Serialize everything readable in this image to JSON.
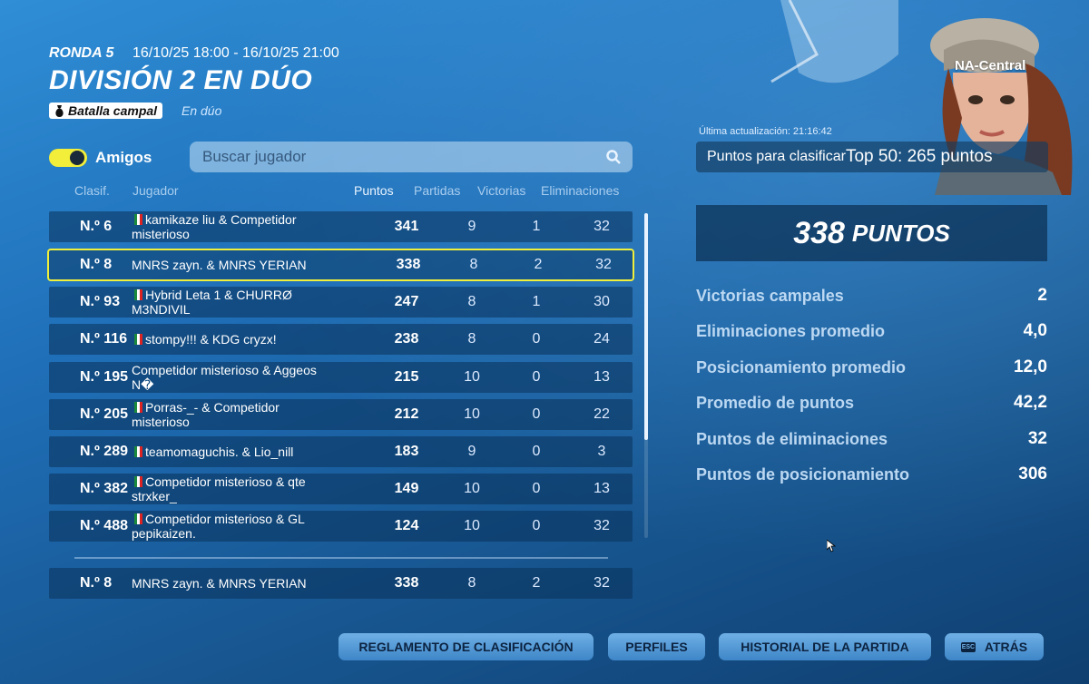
{
  "header": {
    "round": "RONDA 5",
    "dates": "16/10/25 18:00 - 16/10/25 21:00",
    "title": "DIVISIÓN 2 EN DÚO",
    "mode": "Batalla campal",
    "mode_sub": "En dúo"
  },
  "controls": {
    "friends_label": "Amigos",
    "friends_toggle_on": true,
    "search_placeholder": "Buscar jugador"
  },
  "table": {
    "columns": [
      "Clasif.",
      "Jugador",
      "Puntos",
      "Partidas",
      "Victorias",
      "Eliminaciones"
    ],
    "rows": [
      {
        "rank": "N.º 6",
        "line1": "kamikaze liu & Competidor",
        "line2": "misterioso",
        "points": "341",
        "matches": "9",
        "wins": "1",
        "elims": "32"
      },
      {
        "rank": "N.º 8",
        "line1": "MNRS zayn. & MNRS YERIAN",
        "line2": "",
        "points": "338",
        "matches": "8",
        "wins": "2",
        "elims": "32"
      },
      {
        "rank": "N.º 93",
        "line1": "Hybrid Leta 1 & CHURRØ",
        "line2": "M3NDIVIL",
        "points": "247",
        "matches": "8",
        "wins": "1",
        "elims": "30"
      },
      {
        "rank": "N.º 116",
        "line1": "stompy!!! & KDG cryzx!",
        "line2": "",
        "points": "238",
        "matches": "8",
        "wins": "0",
        "elims": "24"
      },
      {
        "rank": "N.º 195",
        "line1": "Competidor misterioso & Aggeos",
        "line2": "N�",
        "points": "215",
        "matches": "10",
        "wins": "0",
        "elims": "13"
      },
      {
        "rank": "N.º 205",
        "line1": "Porras-_- & Competidor",
        "line2": "misterioso",
        "points": "212",
        "matches": "10",
        "wins": "0",
        "elims": "22"
      },
      {
        "rank": "N.º 289",
        "line1": "teamomaguchis. & Lio_nill",
        "line2": "",
        "points": "183",
        "matches": "9",
        "wins": "0",
        "elims": "3"
      },
      {
        "rank": "N.º 382",
        "line1": "Competidor misterioso & qte",
        "line2": "strxker_",
        "points": "149",
        "matches": "10",
        "wins": "0",
        "elims": "13"
      },
      {
        "rank": "N.º 488",
        "line1": "Competidor misterioso & GL",
        "line2": "pepikaizen.",
        "points": "124",
        "matches": "10",
        "wins": "0",
        "elims": "32"
      }
    ],
    "me": {
      "rank": "N.º 8",
      "line1": "MNRS zayn. & MNRS YERIAN",
      "points": "338",
      "matches": "8",
      "wins": "2",
      "elims": "32"
    }
  },
  "panel": {
    "region": "NA-Central",
    "last_update": "Última actualización: 21:16:42",
    "qualify_label": "Puntos para clasificar",
    "qualify_value": "Top 50: 265 puntos",
    "points_number": "338",
    "points_unit": "PUNTOS",
    "stats": [
      {
        "label": "Victorias campales",
        "value": "2"
      },
      {
        "label": "Eliminaciones promedio",
        "value": "4,0"
      },
      {
        "label": "Posicionamiento promedio",
        "value": "12,0"
      },
      {
        "label": "Promedio de puntos",
        "value": "42,2"
      },
      {
        "label": "Puntos de eliminaciones",
        "value": "32"
      },
      {
        "label": "Puntos de posicionamiento",
        "value": "306"
      }
    ]
  },
  "buttons": {
    "rules": "REGLAMENTO DE CLASIFICACIÓN",
    "profiles": "PERFILES",
    "history": "HISTORIAL DE LA PARTIDA",
    "back": "ATRÁS",
    "back_key": "ESC"
  }
}
